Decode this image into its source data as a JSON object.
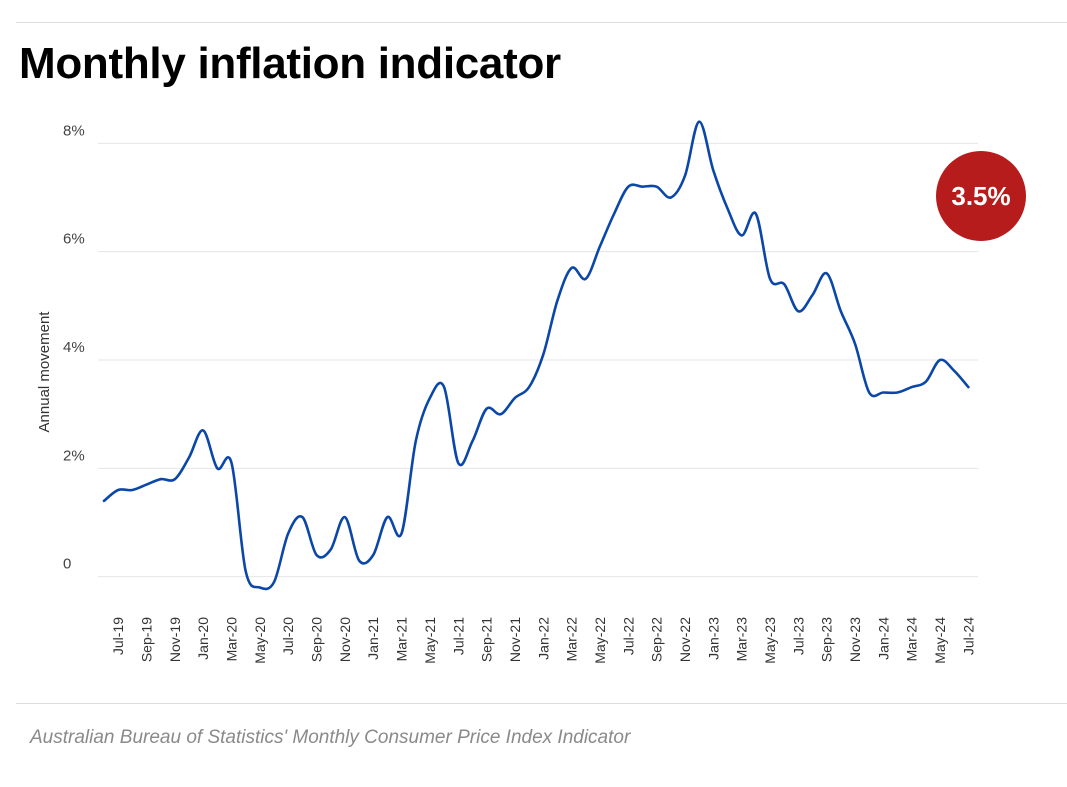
{
  "title": "Monthly inflation indicator",
  "source": "Australian Bureau of Statistics' Monthly Consumer Price Index Indicator",
  "badge": {
    "label": "3.5%",
    "color": "#b71c1c"
  },
  "colors": {
    "line": "#0b47a8",
    "grid": "#e6e6e6"
  },
  "chart_data": {
    "type": "line",
    "title": "Monthly inflation indicator",
    "xlabel": "",
    "ylabel": "Annual movement",
    "ylim": [
      -0.8,
      8.8
    ],
    "y_ticks": [
      {
        "value": 0,
        "label": "0"
      },
      {
        "value": 2,
        "label": "2%"
      },
      {
        "value": 4,
        "label": "4%"
      },
      {
        "value": 6,
        "label": "6%"
      },
      {
        "value": 8,
        "label": "8%"
      }
    ],
    "x_tick_labels": [
      "Jul-19",
      "Sep-19",
      "Nov-19",
      "Jan-20",
      "Mar-20",
      "May-20",
      "Jul-20",
      "Sep-20",
      "Nov-20",
      "Jan-21",
      "Mar-21",
      "May-21",
      "Jul-21",
      "Sep-21",
      "Nov-21",
      "Jan-22",
      "Mar-22",
      "May-22",
      "Jul-22",
      "Sep-22",
      "Nov-22",
      "Jan-23",
      "Mar-23",
      "May-23",
      "Jul-23",
      "Sep-23",
      "Nov-23",
      "Jan-24",
      "Mar-24",
      "May-24",
      "Jul-24"
    ],
    "series": [
      {
        "name": "Annual movement",
        "categories": [
          "Jun-19",
          "Jul-19",
          "Aug-19",
          "Sep-19",
          "Oct-19",
          "Nov-19",
          "Dec-19",
          "Jan-20",
          "Feb-20",
          "Mar-20",
          "Apr-20",
          "May-20",
          "Jun-20",
          "Jul-20",
          "Aug-20",
          "Sep-20",
          "Oct-20",
          "Nov-20",
          "Dec-20",
          "Jan-21",
          "Feb-21",
          "Mar-21",
          "Apr-21",
          "May-21",
          "Jun-21",
          "Jul-21",
          "Aug-21",
          "Sep-21",
          "Oct-21",
          "Nov-21",
          "Dec-21",
          "Jan-22",
          "Feb-22",
          "Mar-22",
          "Apr-22",
          "May-22",
          "Jun-22",
          "Jul-22",
          "Aug-22",
          "Sep-22",
          "Oct-22",
          "Nov-22",
          "Dec-22",
          "Jan-23",
          "Feb-23",
          "Mar-23",
          "Apr-23",
          "May-23",
          "Jun-23",
          "Jul-23",
          "Aug-23",
          "Sep-23",
          "Oct-23",
          "Nov-23",
          "Dec-23",
          "Jan-24",
          "Feb-24",
          "Mar-24",
          "Apr-24",
          "May-24",
          "Jun-24",
          "Jul-24"
        ],
        "values": [
          1.4,
          1.6,
          1.6,
          1.7,
          1.8,
          1.8,
          2.2,
          2.7,
          2.0,
          2.1,
          0.1,
          -0.2,
          -0.1,
          0.8,
          1.1,
          0.4,
          0.5,
          1.1,
          0.3,
          0.4,
          1.1,
          0.8,
          2.5,
          3.3,
          3.5,
          2.1,
          2.5,
          3.1,
          3.0,
          3.3,
          3.5,
          4.1,
          5.1,
          5.7,
          5.5,
          6.1,
          6.7,
          7.2,
          7.2,
          7.2,
          7.0,
          7.4,
          8.4,
          7.5,
          6.8,
          6.3,
          6.7,
          5.5,
          5.4,
          4.9,
          5.2,
          5.6,
          4.9,
          4.3,
          3.4,
          3.4,
          3.4,
          3.5,
          3.6,
          4.0,
          3.8,
          3.5
        ]
      }
    ]
  }
}
